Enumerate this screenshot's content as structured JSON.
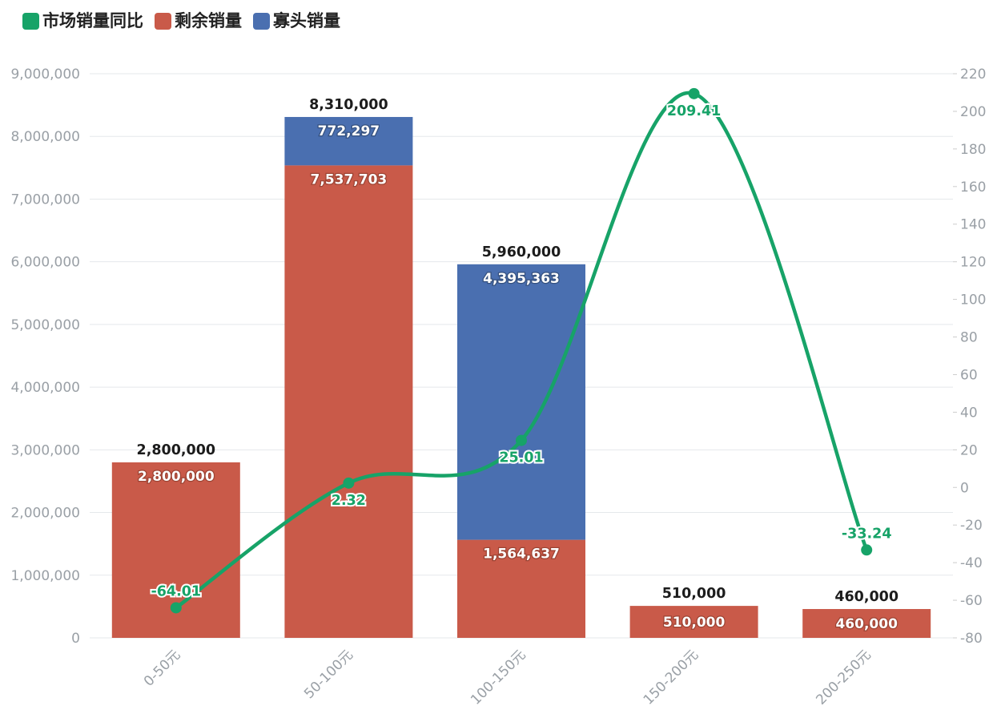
{
  "legend": {
    "items": [
      {
        "label": "市场销量同比",
        "color": "#17a368"
      },
      {
        "label": "剩余销量",
        "color": "#c95a49"
      },
      {
        "label": "寡头销量",
        "color": "#4a6fb0"
      }
    ]
  },
  "chart_data": {
    "type": "bar",
    "subtype": "stacked-bar-with-line",
    "categories": [
      "0-50元",
      "50-100元",
      "100-150元",
      "150-200元",
      "200-250元"
    ],
    "series": [
      {
        "name": "剩余销量",
        "type": "bar",
        "stack": "total",
        "color": "#c95a49",
        "label_stroke": "#9c4333",
        "values": [
          2800000,
          7537703,
          1564637,
          510000,
          460000
        ],
        "labels": [
          "2,800,000",
          "7,537,703",
          "1,564,637",
          "510,000",
          "460,000"
        ]
      },
      {
        "name": "寡头销量",
        "type": "bar",
        "stack": "total",
        "color": "#4a6fb0",
        "label_stroke": "#35517f",
        "values": [
          0,
          772297,
          4395363,
          0,
          0
        ],
        "labels": [
          "",
          "772,297",
          "4,395,363",
          "",
          ""
        ]
      },
      {
        "name": "市场销量同比",
        "type": "line",
        "axis": "right",
        "color": "#17a368",
        "values": [
          -64.01,
          2.32,
          25.01,
          209.41,
          -33.24
        ],
        "labels": [
          "-64.01",
          "2.32",
          "25.01",
          "209.41",
          "-33.24"
        ],
        "label_positions": [
          "top",
          "bottom",
          "bottom",
          "bottom",
          "top"
        ]
      }
    ],
    "totals": {
      "values": [
        2800000,
        8310000,
        5960000,
        510000,
        460000
      ],
      "labels": [
        "2,800,000",
        "8,310,000",
        "5,960,000",
        "510,000",
        "460,000"
      ]
    },
    "left_axis": {
      "min": 0,
      "max": 9000000,
      "tick_labels": [
        "0",
        "1,000,000",
        "2,000,000",
        "3,000,000",
        "4,000,000",
        "5,000,000",
        "6,000,000",
        "7,000,000",
        "8,000,000",
        "9,000,000"
      ]
    },
    "right_axis": {
      "min": -80,
      "max": 220,
      "tick_labels": [
        "-80",
        "-60",
        "-40",
        "-20",
        "0",
        "20",
        "40",
        "60",
        "80",
        "100",
        "120",
        "140",
        "160",
        "180",
        "200",
        "220"
      ]
    },
    "grid": true,
    "legend_position": "top-left"
  },
  "colors": {
    "grid_line": "#e5e8eb",
    "axis_tick": "#cccccc",
    "axis_label": "#9aa0a6",
    "total_label": "#1c1c1c",
    "segment_label": "#ffffff"
  }
}
